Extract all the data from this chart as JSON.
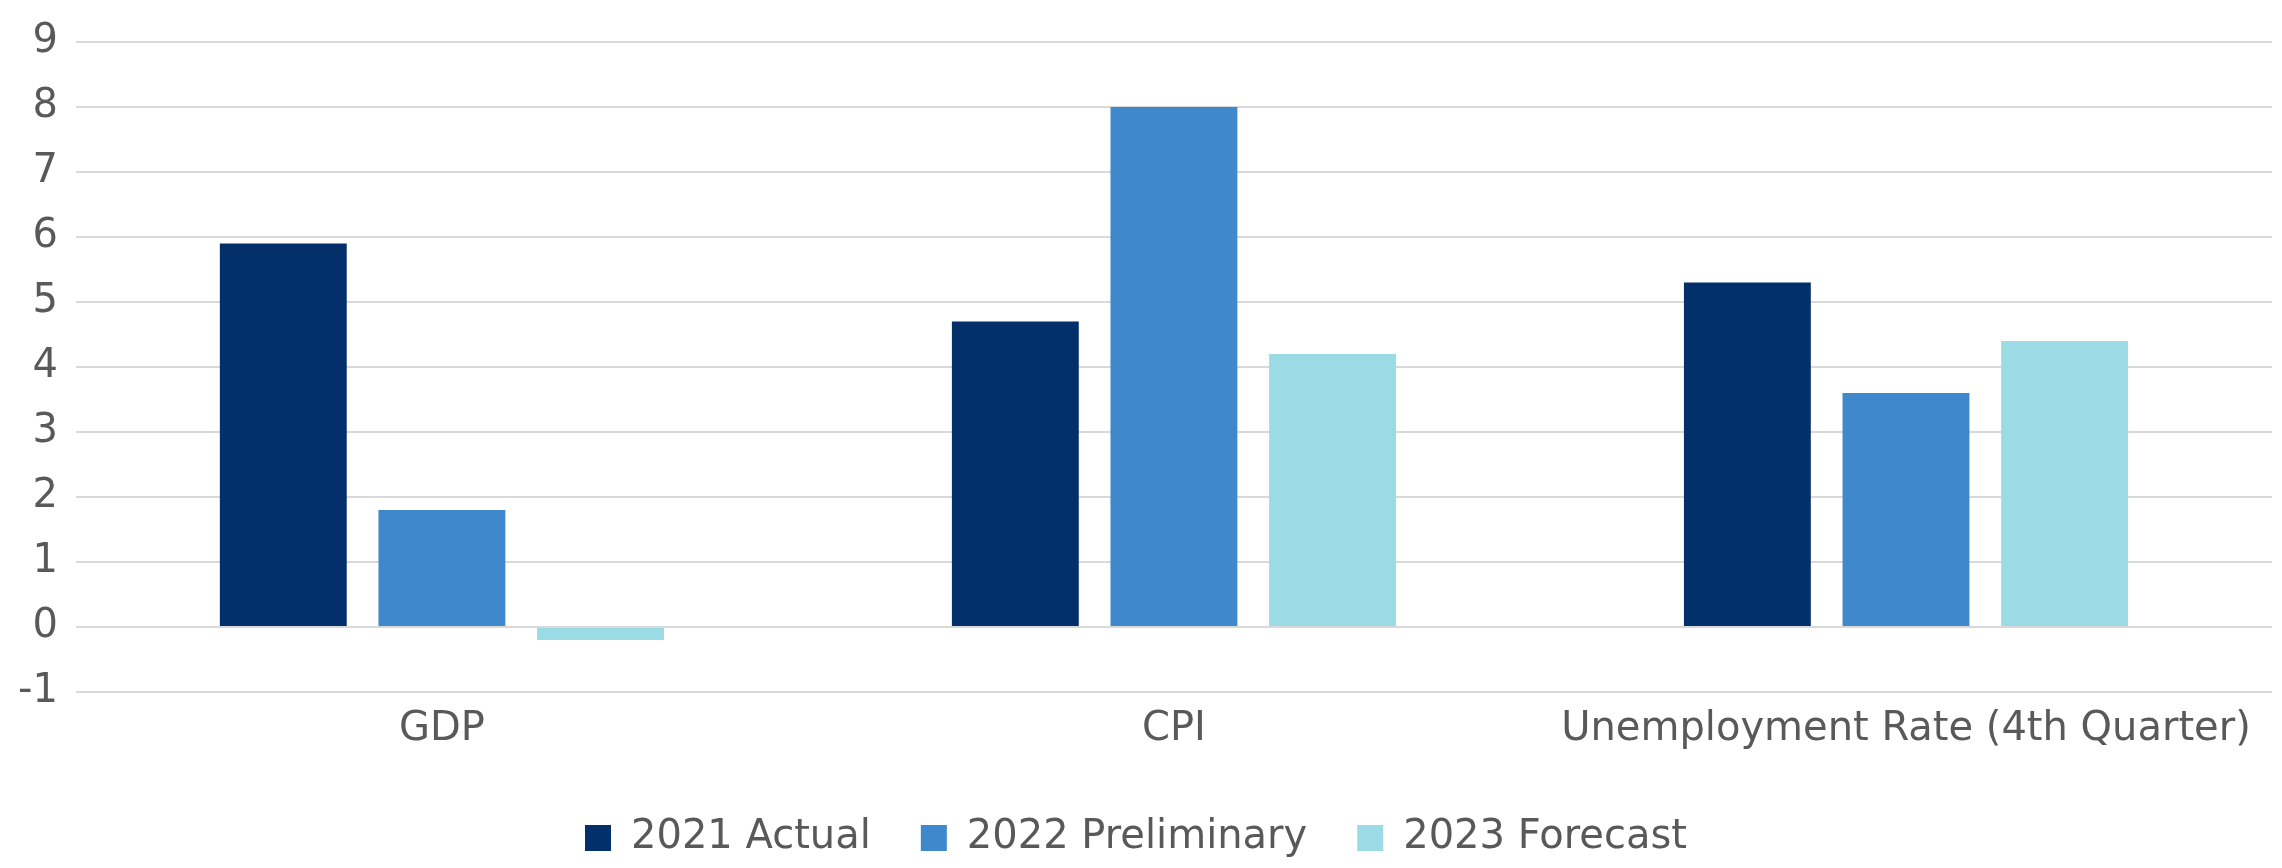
{
  "chart_data": {
    "type": "bar",
    "categories": [
      "GDP",
      "CPI",
      "Unemployment Rate (4th Quarter)"
    ],
    "series": [
      {
        "name": "2021 Actual",
        "color": "#03306b",
        "values": [
          5.9,
          4.7,
          5.3
        ]
      },
      {
        "name": "2022 Preliminary",
        "color": "#3f88cb",
        "values": [
          1.8,
          8.0,
          3.6
        ]
      },
      {
        "name": "2023 Forecast",
        "color": "#9adbe6",
        "values": [
          -0.2,
          4.2,
          4.4
        ]
      }
    ],
    "ylim": [
      -1,
      9
    ],
    "yticks": [
      -1,
      0,
      1,
      2,
      3,
      4,
      5,
      6,
      7,
      8,
      9
    ],
    "grid": "y",
    "legend": "bottom"
  }
}
